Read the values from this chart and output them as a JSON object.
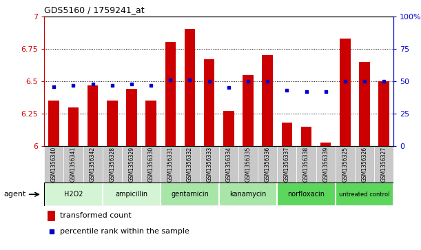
{
  "title": "GDS5160 / 1759241_at",
  "categories": [
    "GSM1356340",
    "GSM1356341",
    "GSM1356342",
    "GSM1356328",
    "GSM1356329",
    "GSM1356330",
    "GSM1356331",
    "GSM1356332",
    "GSM1356333",
    "GSM1356334",
    "GSM1356335",
    "GSM1356336",
    "GSM1356337",
    "GSM1356338",
    "GSM1356339",
    "GSM1356325",
    "GSM1356326",
    "GSM1356327"
  ],
  "bar_values": [
    6.35,
    6.3,
    6.47,
    6.35,
    6.44,
    6.35,
    6.8,
    6.9,
    6.67,
    6.27,
    6.55,
    6.7,
    6.18,
    6.15,
    6.03,
    6.83,
    6.65,
    6.5
  ],
  "dot_values": [
    46,
    47,
    48,
    47,
    48,
    47,
    51,
    51,
    50,
    45,
    50,
    50,
    43,
    42,
    42,
    50,
    50,
    50
  ],
  "bar_color": "#cc0000",
  "dot_color": "#0000cc",
  "ylim_left": [
    6.0,
    7.0
  ],
  "ylim_right": [
    0,
    100
  ],
  "yticks_left": [
    6.0,
    6.25,
    6.5,
    6.75,
    7.0
  ],
  "yticks_right": [
    0,
    25,
    50,
    75,
    100
  ],
  "ytick_labels_left": [
    "6",
    "6.25",
    "6.5",
    "6.75",
    "7"
  ],
  "ytick_labels_right": [
    "0",
    "25",
    "50",
    "75",
    "100%"
  ],
  "groups": [
    {
      "label": "H2O2",
      "start": 0,
      "end": 3,
      "color": "#d4f5d4"
    },
    {
      "label": "ampicillin",
      "start": 3,
      "end": 6,
      "color": "#d4f5d4"
    },
    {
      "label": "gentamicin",
      "start": 6,
      "end": 9,
      "color": "#a8e6a8"
    },
    {
      "label": "kanamycin",
      "start": 9,
      "end": 12,
      "color": "#a8e6a8"
    },
    {
      "label": "norfloxacin",
      "start": 12,
      "end": 15,
      "color": "#5cd65c"
    },
    {
      "label": "untreated control",
      "start": 15,
      "end": 18,
      "color": "#5cd65c"
    }
  ],
  "agent_label": "agent",
  "legend_bar_label": "transformed count",
  "legend_dot_label": "percentile rank within the sample",
  "grid_color": "#000000",
  "tick_color_left": "#cc0000",
  "tick_color_right": "#0000cc",
  "background_plot": "#ffffff",
  "xtick_bg": "#c8c8c8"
}
